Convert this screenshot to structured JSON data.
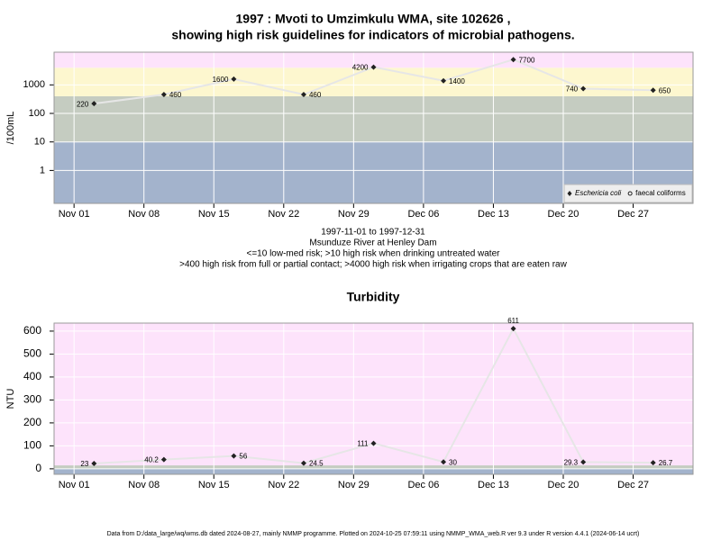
{
  "chart_data": [
    {
      "type": "line",
      "title": [
        "1997 : Mvoti to Umzimkulu WMA, site 102626 ,",
        "showing high risk guidelines for indicators of microbial pathogens."
      ],
      "ylabel": "/100mL",
      "log_scale": true,
      "x": [
        "1997-11-03",
        "1997-11-10",
        "1997-11-17",
        "1997-11-24",
        "1997-12-01",
        "1997-12-08",
        "1997-12-15",
        "1997-12-22",
        "1997-12-29"
      ],
      "series": [
        {
          "name": "Eschericia coli",
          "color": "#222222",
          "marker": "diamond",
          "values": [
            220,
            460,
            1600,
            460,
            4200,
            1400,
            7700,
            740,
            650
          ]
        },
        {
          "name": "faecal coliforms",
          "color": "#222222",
          "marker": "circle-open",
          "values": [
            null,
            null,
            null,
            null,
            null,
            null,
            null,
            null,
            null
          ]
        }
      ],
      "line_color": "#e6e6e6",
      "xlim": [
        "1997-10-30",
        "1998-01-02"
      ],
      "xticks": [
        {
          "value": "1997-11-01",
          "label": "Nov 01"
        },
        {
          "value": "1997-11-08",
          "label": "Nov 08"
        },
        {
          "value": "1997-11-15",
          "label": "Nov 15"
        },
        {
          "value": "1997-11-22",
          "label": "Nov 22"
        },
        {
          "value": "1997-11-29",
          "label": "Nov 29"
        },
        {
          "value": "1997-12-06",
          "label": "Dec 06"
        },
        {
          "value": "1997-12-13",
          "label": "Dec 13"
        },
        {
          "value": "1997-12-20",
          "label": "Dec 20"
        },
        {
          "value": "1997-12-27",
          "label": "Dec 27"
        }
      ],
      "ylim": [
        0.07,
        14000
      ],
      "yticks": [
        1,
        10,
        100,
        1000
      ],
      "thresholds": [
        10,
        400,
        4000
      ],
      "band_colors": [
        "#a3b3cc",
        "#c5ccc1",
        "#fdf7cf",
        "#fde3fb"
      ],
      "grid": true,
      "legend": "lower right",
      "caption": [
        "1997-11-01 to 1997-12-31",
        "Msunduze River at Henley Dam",
        "<=10 low-med risk; >10 high risk when drinking untreated water",
        ">400 high risk from full or partial contact; >4000 high risk when irrigating crops that are eaten raw"
      ]
    },
    {
      "type": "line",
      "title": [
        "Turbidity"
      ],
      "ylabel": "NTU",
      "log_scale": false,
      "x": [
        "1997-11-03",
        "1997-11-10",
        "1997-11-17",
        "1997-11-24",
        "1997-12-01",
        "1997-12-08",
        "1997-12-15",
        "1997-12-22",
        "1997-12-29"
      ],
      "series": [
        {
          "name": "Turbidity",
          "color": "#222222",
          "marker": "diamond",
          "values": [
            23,
            40.2,
            56,
            24.5,
            111,
            30,
            611,
            29.3,
            26.7
          ]
        }
      ],
      "line_color": "#e6e6e6",
      "xlim": [
        "1997-10-30",
        "1998-01-02"
      ],
      "xticks": [
        {
          "value": "1997-11-01",
          "label": "Nov 01"
        },
        {
          "value": "1997-11-08",
          "label": "Nov 08"
        },
        {
          "value": "1997-11-15",
          "label": "Nov 15"
        },
        {
          "value": "1997-11-22",
          "label": "Nov 22"
        },
        {
          "value": "1997-11-29",
          "label": "Nov 29"
        },
        {
          "value": "1997-12-06",
          "label": "Dec 06"
        },
        {
          "value": "1997-12-13",
          "label": "Dec 13"
        },
        {
          "value": "1997-12-20",
          "label": "Dec 20"
        },
        {
          "value": "1997-12-27",
          "label": "Dec 27"
        }
      ],
      "ylim": [
        -24,
        635
      ],
      "yticks": [
        0,
        100,
        200,
        300,
        400,
        500,
        600
      ],
      "thresholds": [
        1,
        15
      ],
      "band_colors": [
        "#a3b3cc",
        "#c5ccc1",
        "#fde3fb"
      ],
      "grid": true
    }
  ],
  "footer": "Data from D:/data_large/wq/wms.db dated 2024-08-27, mainly NMMP programme. Plotted on 2024-10-25 07:59:11 using NMMP_WMA_web.R ver 9.3 under R version 4.4.1 (2024-06-14 ucrt)"
}
